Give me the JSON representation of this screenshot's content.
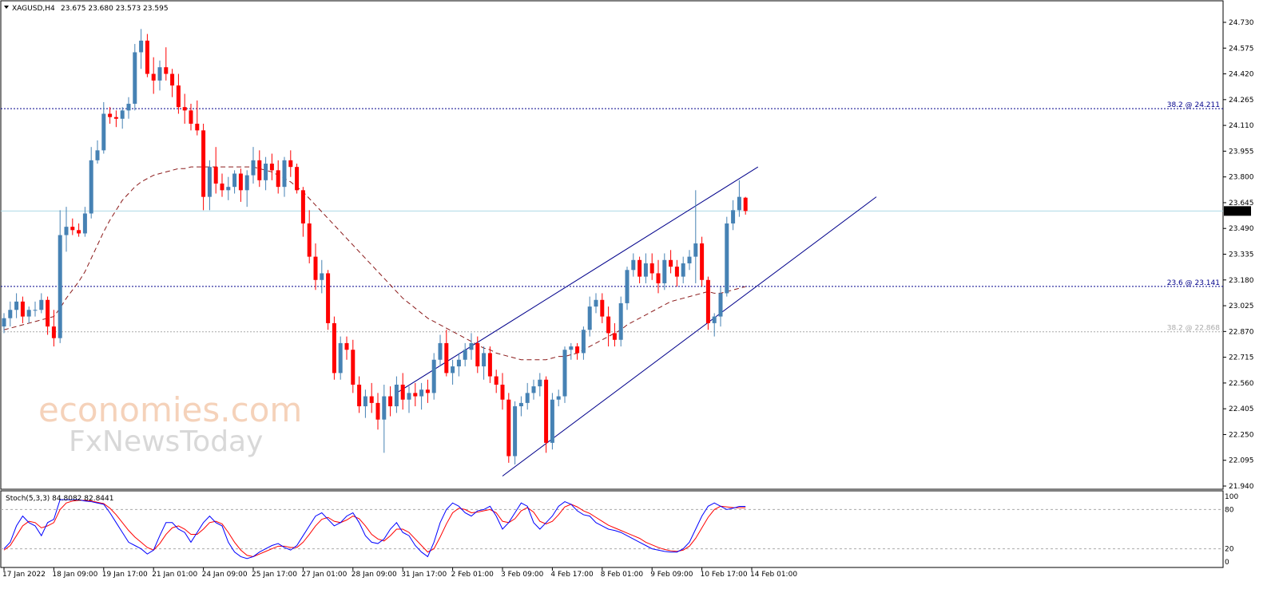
{
  "header": {
    "symbol": "XAGUSD,H4",
    "ohlc": "23.675 23.680 23.573 23.595"
  },
  "watermark": {
    "line1": "economies.com",
    "line2": "FxNewsToday"
  },
  "colors": {
    "bull": "#4682b4",
    "bear": "#ff0000",
    "ma": "#8b1a1a",
    "channel": "#00008b",
    "fib": "#00008b",
    "fib_gray": "#a9a9a9",
    "price_line": "#add8e6",
    "stoch_main": "#0000ff",
    "stoch_signal": "#ff0000"
  },
  "price_axis": {
    "ticks": [
      "24.730",
      "24.575",
      "24.420",
      "24.265",
      "24.110",
      "23.955",
      "23.800",
      "23.645",
      "23.490",
      "23.335",
      "23.180",
      "23.025",
      "22.870",
      "22.715",
      "22.560",
      "22.405",
      "22.250",
      "22.095",
      "21.940"
    ],
    "ylim": [
      21.94,
      24.8
    ],
    "current_price": 23.595,
    "current_label": "23.595"
  },
  "levels": [
    {
      "value": 24.211,
      "label": "38.2 @ 24.211",
      "color": "#00008b"
    },
    {
      "value": 23.141,
      "label": "23.6 @ 23.141",
      "color": "#00008b"
    },
    {
      "value": 22.868,
      "label": "38.2 @ 22.868",
      "color": "#a9a9a9"
    }
  ],
  "time_axis": {
    "labels": [
      "17 Jan 2022",
      "18 Jan 09:00",
      "19 Jan 17:00",
      "21 Jan 01:00",
      "24 Jan 09:00",
      "25 Jan 17:00",
      "27 Jan 01:00",
      "28 Jan 09:00",
      "31 Jan 17:00",
      "2 Feb 01:00",
      "3 Feb 09:00",
      "4 Feb 17:00",
      "8 Feb 01:00",
      "9 Feb 09:00",
      "10 Feb 17:00",
      "14 Feb 01:00"
    ],
    "label_bars": [
      0,
      8,
      16,
      24,
      32,
      40,
      48,
      56,
      64,
      72,
      80,
      88,
      96,
      104,
      112,
      120
    ]
  },
  "stochastic": {
    "title": "Stoch(5,3,3) 84.8082 82.8441",
    "ticks": [
      "100",
      "80",
      "20",
      "0"
    ],
    "levels": [
      80,
      20
    ]
  },
  "chart_data": {
    "type": "candlestick",
    "symbol": "XAGUSD",
    "timeframe": "H4",
    "candles": [
      [
        22.9,
        22.98,
        22.86,
        22.95
      ],
      [
        22.95,
        23.05,
        22.9,
        23.0
      ],
      [
        23.0,
        23.1,
        22.95,
        23.05
      ],
      [
        23.05,
        23.08,
        22.92,
        22.96
      ],
      [
        22.96,
        23.02,
        22.92,
        23.0
      ],
      [
        23.0,
        23.05,
        22.96,
        23.0
      ],
      [
        23.0,
        23.1,
        22.98,
        23.06
      ],
      [
        23.06,
        23.08,
        22.85,
        22.9
      ],
      [
        22.9,
        23.0,
        22.78,
        22.83
      ],
      [
        22.83,
        23.6,
        22.8,
        23.45
      ],
      [
        23.45,
        23.62,
        23.35,
        23.5
      ],
      [
        23.5,
        23.55,
        23.45,
        23.48
      ],
      [
        23.48,
        23.52,
        23.44,
        23.46
      ],
      [
        23.46,
        23.62,
        23.44,
        23.58
      ],
      [
        23.58,
        23.98,
        23.55,
        23.9
      ],
      [
        23.9,
        24.02,
        23.88,
        23.96
      ],
      [
        23.96,
        24.25,
        23.94,
        24.18
      ],
      [
        24.18,
        24.22,
        24.12,
        24.16
      ],
      [
        24.16,
        24.2,
        24.1,
        24.15
      ],
      [
        24.15,
        24.22,
        24.09,
        24.2
      ],
      [
        24.2,
        24.28,
        24.15,
        24.24
      ],
      [
        24.24,
        24.6,
        24.2,
        24.55
      ],
      [
        24.55,
        24.69,
        24.45,
        24.62
      ],
      [
        24.62,
        24.66,
        24.4,
        24.42
      ],
      [
        24.42,
        24.52,
        24.3,
        24.38
      ],
      [
        24.38,
        24.5,
        24.32,
        24.46
      ],
      [
        24.46,
        24.58,
        24.38,
        24.42
      ],
      [
        24.42,
        24.45,
        24.28,
        24.35
      ],
      [
        24.35,
        24.42,
        24.18,
        24.22
      ],
      [
        24.22,
        24.3,
        24.12,
        24.2
      ],
      [
        24.2,
        24.24,
        24.08,
        24.12
      ],
      [
        24.12,
        24.26,
        24.05,
        24.08
      ],
      [
        24.08,
        24.12,
        23.6,
        23.68
      ],
      [
        23.68,
        23.9,
        23.6,
        23.86
      ],
      [
        23.86,
        23.98,
        23.7,
        23.76
      ],
      [
        23.76,
        23.82,
        23.68,
        23.72
      ],
      [
        23.72,
        23.8,
        23.66,
        23.74
      ],
      [
        23.74,
        23.84,
        23.7,
        23.82
      ],
      [
        23.82,
        23.85,
        23.65,
        23.72
      ],
      [
        23.72,
        23.84,
        23.62,
        23.81
      ],
      [
        23.81,
        23.98,
        23.76,
        23.9
      ],
      [
        23.9,
        23.96,
        23.74,
        23.78
      ],
      [
        23.78,
        23.92,
        23.72,
        23.88
      ],
      [
        23.88,
        23.94,
        23.78,
        23.84
      ],
      [
        23.84,
        23.9,
        23.7,
        23.74
      ],
      [
        23.74,
        23.92,
        23.68,
        23.9
      ],
      [
        23.9,
        23.96,
        23.8,
        23.86
      ],
      [
        23.86,
        23.88,
        23.7,
        23.72
      ],
      [
        23.72,
        23.74,
        23.44,
        23.52
      ],
      [
        23.52,
        23.6,
        23.28,
        23.32
      ],
      [
        23.32,
        23.4,
        23.12,
        23.18
      ],
      [
        23.18,
        23.3,
        23.1,
        23.22
      ],
      [
        23.22,
        23.24,
        22.88,
        22.92
      ],
      [
        22.92,
        22.96,
        22.58,
        22.62
      ],
      [
        22.62,
        22.84,
        22.58,
        22.8
      ],
      [
        22.8,
        22.84,
        22.7,
        22.76
      ],
      [
        22.76,
        22.82,
        22.5,
        22.55
      ],
      [
        22.55,
        22.6,
        22.38,
        22.42
      ],
      [
        22.42,
        22.52,
        22.35,
        22.48
      ],
      [
        22.48,
        22.56,
        22.38,
        22.44
      ],
      [
        22.44,
        22.5,
        22.28,
        22.34
      ],
      [
        22.34,
        22.55,
        22.14,
        22.48
      ],
      [
        22.48,
        22.54,
        22.36,
        22.42
      ],
      [
        22.42,
        22.6,
        22.38,
        22.55
      ],
      [
        22.55,
        22.62,
        22.4,
        22.46
      ],
      [
        22.46,
        22.54,
        22.38,
        22.5
      ],
      [
        22.5,
        22.56,
        22.42,
        22.48
      ],
      [
        22.48,
        22.56,
        22.4,
        22.52
      ],
      [
        22.52,
        22.58,
        22.44,
        22.5
      ],
      [
        22.5,
        22.74,
        22.46,
        22.7
      ],
      [
        22.7,
        22.85,
        22.66,
        22.8
      ],
      [
        22.8,
        22.88,
        22.6,
        22.62
      ],
      [
        22.62,
        22.7,
        22.55,
        22.66
      ],
      [
        22.66,
        22.74,
        22.6,
        22.7
      ],
      [
        22.7,
        22.8,
        22.66,
        22.76
      ],
      [
        22.76,
        22.86,
        22.7,
        22.8
      ],
      [
        22.8,
        22.84,
        22.62,
        22.66
      ],
      [
        22.66,
        22.78,
        22.58,
        22.74
      ],
      [
        22.74,
        22.78,
        22.56,
        22.6
      ],
      [
        22.6,
        22.64,
        22.5,
        22.55
      ],
      [
        22.55,
        22.62,
        22.4,
        22.46
      ],
      [
        22.46,
        22.5,
        22.08,
        22.12
      ],
      [
        22.12,
        22.45,
        22.07,
        22.42
      ],
      [
        22.42,
        22.48,
        22.36,
        22.44
      ],
      [
        22.44,
        22.56,
        22.4,
        22.5
      ],
      [
        22.5,
        22.58,
        22.46,
        22.54
      ],
      [
        22.54,
        22.62,
        22.48,
        22.58
      ],
      [
        22.58,
        22.6,
        22.14,
        22.2
      ],
      [
        22.2,
        22.5,
        22.16,
        22.46
      ],
      [
        22.46,
        22.52,
        22.42,
        22.48
      ],
      [
        22.48,
        22.78,
        22.44,
        22.76
      ],
      [
        22.76,
        22.8,
        22.7,
        22.78
      ],
      [
        22.78,
        22.8,
        22.7,
        22.74
      ],
      [
        22.74,
        22.9,
        22.7,
        22.88
      ],
      [
        22.88,
        23.08,
        22.84,
        23.02
      ],
      [
        23.02,
        23.1,
        22.98,
        23.06
      ],
      [
        23.06,
        23.1,
        22.92,
        22.96
      ],
      [
        22.96,
        23.02,
        22.78,
        22.86
      ],
      [
        22.86,
        22.92,
        22.78,
        22.82
      ],
      [
        22.82,
        23.08,
        22.78,
        23.04
      ],
      [
        23.04,
        23.26,
        23.0,
        23.24
      ],
      [
        23.24,
        23.34,
        23.2,
        23.3
      ],
      [
        23.3,
        23.32,
        23.16,
        23.2
      ],
      [
        23.2,
        23.34,
        23.16,
        23.28
      ],
      [
        23.28,
        23.34,
        23.18,
        23.22
      ],
      [
        23.22,
        23.3,
        23.1,
        23.16
      ],
      [
        23.16,
        23.34,
        23.12,
        23.3
      ],
      [
        23.3,
        23.36,
        23.22,
        23.26
      ],
      [
        23.26,
        23.3,
        23.14,
        23.2
      ],
      [
        23.2,
        23.32,
        23.16,
        23.28
      ],
      [
        23.28,
        23.36,
        23.24,
        23.32
      ],
      [
        23.32,
        23.72,
        23.16,
        23.4
      ],
      [
        23.4,
        23.44,
        23.14,
        23.18
      ],
      [
        23.18,
        23.2,
        22.88,
        22.92
      ],
      [
        22.92,
        22.98,
        22.84,
        22.96
      ],
      [
        22.96,
        23.14,
        22.9,
        23.1
      ],
      [
        23.1,
        23.56,
        23.08,
        23.52
      ],
      [
        23.52,
        23.66,
        23.48,
        23.6
      ],
      [
        23.6,
        23.78,
        23.56,
        23.68
      ],
      [
        23.675,
        23.68,
        23.573,
        23.595
      ]
    ],
    "moving_average": [
      22.88,
      22.89,
      22.9,
      22.91,
      22.92,
      22.93,
      22.94,
      22.95,
      22.96,
      23.01,
      23.07,
      23.12,
      23.17,
      23.23,
      23.31,
      23.39,
      23.47,
      23.54,
      23.6,
      23.66,
      23.7,
      23.74,
      23.77,
      23.79,
      23.81,
      23.82,
      23.83,
      23.84,
      23.85,
      23.85,
      23.86,
      23.86,
      23.86,
      23.86,
      23.86,
      23.86,
      23.86,
      23.86,
      23.86,
      23.86,
      23.86,
      23.85,
      23.84,
      23.83,
      23.81,
      23.79,
      23.77,
      23.74,
      23.71,
      23.67,
      23.63,
      23.59,
      23.55,
      23.51,
      23.47,
      23.43,
      23.39,
      23.35,
      23.31,
      23.27,
      23.23,
      23.19,
      23.15,
      23.11,
      23.07,
      23.04,
      23.01,
      22.98,
      22.95,
      22.93,
      22.91,
      22.89,
      22.87,
      22.85,
      22.83,
      22.81,
      22.79,
      22.77,
      22.76,
      22.74,
      22.73,
      22.72,
      22.71,
      22.7,
      22.7,
      22.7,
      22.7,
      22.7,
      22.71,
      22.72,
      22.72,
      22.73,
      22.74,
      22.76,
      22.78,
      22.8,
      22.82,
      22.84,
      22.86,
      22.88,
      22.91,
      22.93,
      22.95,
      22.97,
      22.99,
      23.01,
      23.03,
      23.05,
      23.06,
      23.07,
      23.08,
      23.09,
      23.1,
      23.11,
      23.1,
      23.1,
      23.11,
      23.12,
      23.13,
      23.14
    ],
    "channel": {
      "upper": [
        [
          63,
          22.5
        ],
        [
          121,
          23.86
        ]
      ],
      "lower": [
        [
          80,
          22.0
        ],
        [
          140,
          23.68
        ]
      ]
    },
    "stoch_main": [
      20,
      30,
      55,
      70,
      60,
      55,
      40,
      60,
      65,
      95,
      95,
      95,
      95,
      93,
      92,
      90,
      88,
      75,
      60,
      45,
      30,
      25,
      20,
      12,
      18,
      40,
      60,
      60,
      50,
      45,
      30,
      45,
      60,
      70,
      60,
      55,
      30,
      15,
      8,
      5,
      8,
      15,
      20,
      25,
      28,
      22,
      18,
      25,
      40,
      55,
      70,
      75,
      65,
      55,
      60,
      70,
      75,
      60,
      40,
      30,
      28,
      35,
      50,
      60,
      45,
      40,
      25,
      15,
      8,
      30,
      60,
      80,
      90,
      85,
      75,
      70,
      78,
      80,
      85,
      70,
      50,
      60,
      75,
      90,
      85,
      60,
      50,
      60,
      70,
      85,
      92,
      88,
      78,
      72,
      70,
      60,
      55,
      50,
      48,
      45,
      40,
      35,
      30,
      25,
      20,
      18,
      16,
      15,
      15,
      20,
      30,
      50,
      70,
      85,
      90,
      85,
      80,
      82,
      84.81,
      84.81
    ],
    "stoch_signal": [
      18,
      25,
      40,
      55,
      62,
      60,
      52,
      55,
      60,
      80,
      90,
      93,
      94,
      94,
      93,
      91,
      89,
      82,
      72,
      60,
      48,
      38,
      30,
      22,
      18,
      28,
      42,
      52,
      55,
      50,
      42,
      42,
      50,
      60,
      62,
      58,
      45,
      30,
      18,
      10,
      8,
      12,
      16,
      20,
      24,
      24,
      22,
      22,
      30,
      42,
      55,
      65,
      68,
      62,
      60,
      64,
      70,
      66,
      55,
      42,
      35,
      32,
      40,
      50,
      50,
      45,
      35,
      25,
      15,
      20,
      38,
      58,
      75,
      82,
      80,
      75,
      76,
      78,
      80,
      75,
      62,
      60,
      66,
      78,
      83,
      76,
      62,
      58,
      62,
      72,
      84,
      88,
      84,
      78,
      74,
      68,
      62,
      56,
      52,
      48,
      44,
      40,
      36,
      30,
      26,
      22,
      19,
      17,
      16,
      18,
      24,
      36,
      52,
      68,
      80,
      85,
      84,
      83,
      82.84,
      82.84
    ]
  }
}
